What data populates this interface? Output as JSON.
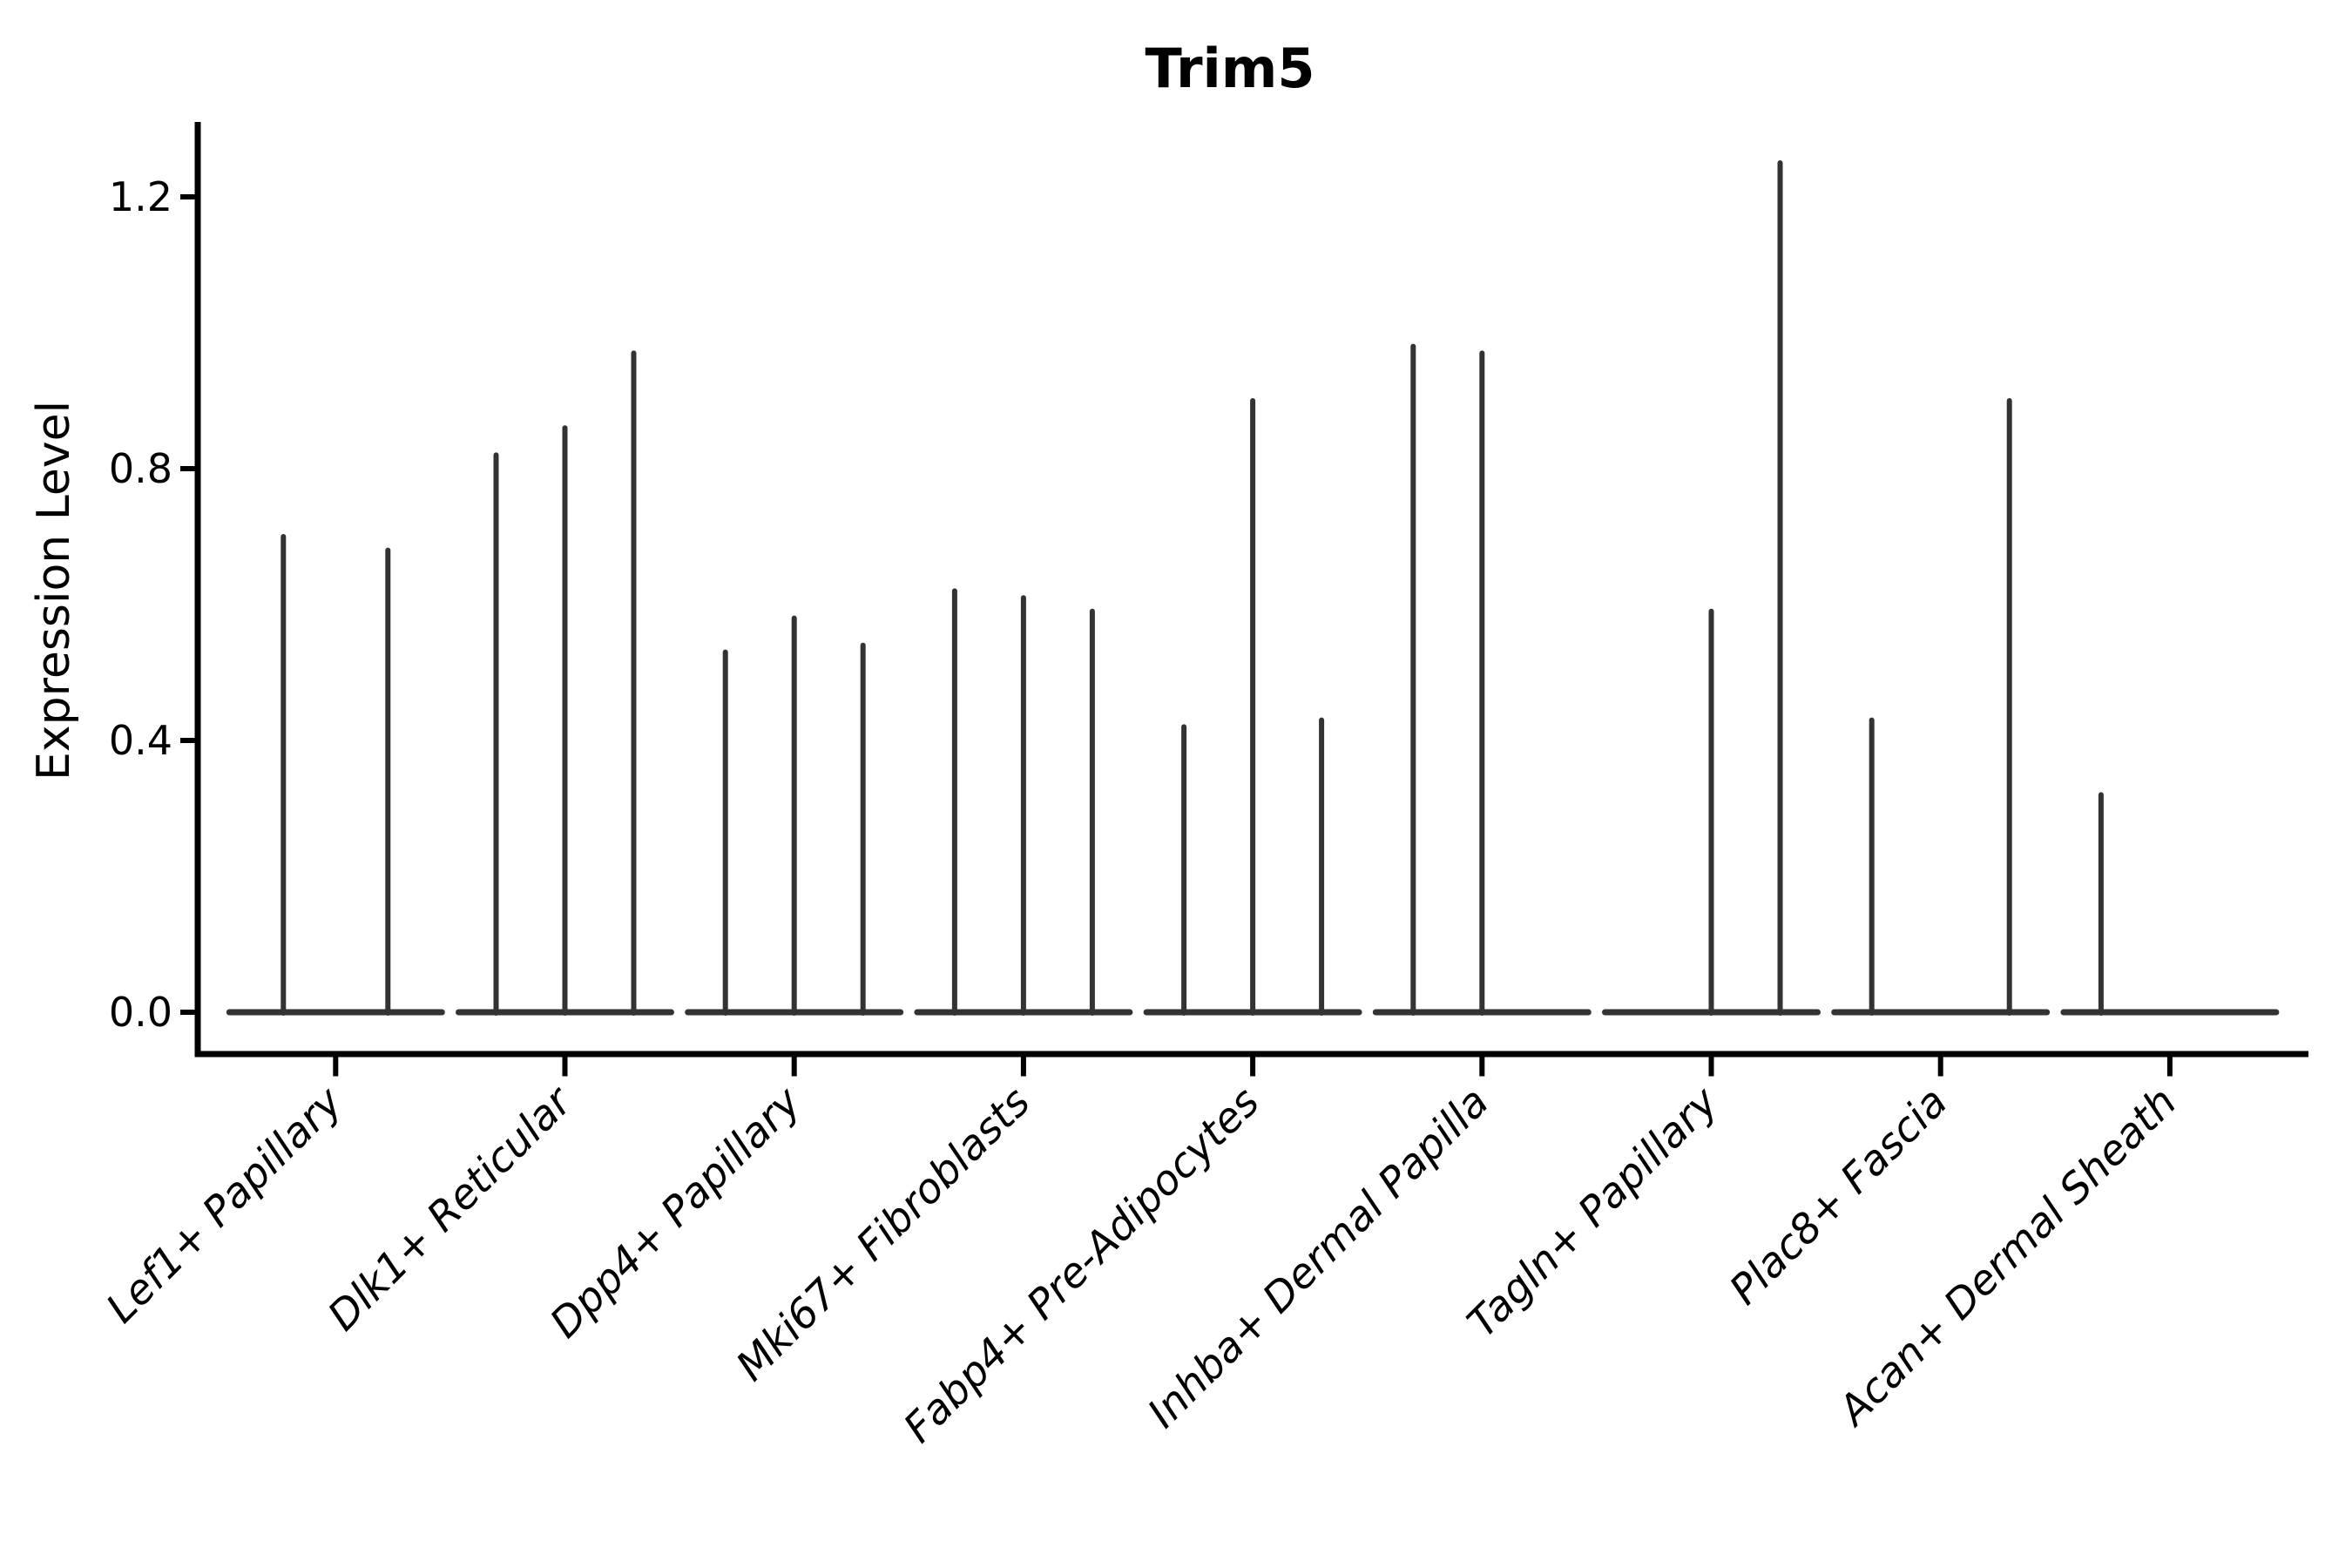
{
  "chart_data": {
    "type": "violin",
    "title": "Trim5",
    "ylabel": "Expression Level",
    "xlabel": "",
    "yticks": [
      0.0,
      0.4,
      0.8,
      1.2
    ],
    "ytick_labels": [
      "0.0",
      "0.4",
      "0.8",
      "1.2"
    ],
    "ylim": [
      -0.06,
      1.31
    ],
    "grid": false,
    "legend": "none",
    "colors": {
      "violin_line": "#333333",
      "axis": "#000000",
      "background": "#ffffff"
    },
    "categories": [
      "Lef1+ Papillary",
      "Dlk1+ Reticular",
      "Dpp4+ Papillary",
      "Mki67+ Fibroblasts",
      "Fabp4+ Pre-Adipocytes",
      "Inhba+ Dermal Papilla",
      "Tagln+ Papillary",
      "Plac8+ Fascia",
      "Acan+ Dermal Sheath"
    ],
    "groups": [
      {
        "label": "Lef1+ Papillary",
        "violins": [
          {
            "dx": -60,
            "max": 0.7
          },
          {
            "dx": 60,
            "max": 0.68
          }
        ]
      },
      {
        "label": "Dlk1+ Reticular",
        "violins": [
          {
            "dx": -79,
            "max": 0.82
          },
          {
            "dx": 0,
            "max": 0.86
          },
          {
            "dx": 79,
            "max": 0.97
          }
        ]
      },
      {
        "label": "Dpp4+ Papillary",
        "violins": [
          {
            "dx": -79,
            "max": 0.53
          },
          {
            "dx": 0,
            "max": 0.58
          },
          {
            "dx": 79,
            "max": 0.54
          }
        ]
      },
      {
        "label": "Mki67+ Fibroblasts",
        "violins": [
          {
            "dx": -79,
            "max": 0.62
          },
          {
            "dx": 0,
            "max": 0.61
          },
          {
            "dx": 79,
            "max": 0.59
          }
        ]
      },
      {
        "label": "Fabp4+ Pre-Adipocytes",
        "violins": [
          {
            "dx": -79,
            "max": 0.42
          },
          {
            "dx": 0,
            "max": 0.9
          },
          {
            "dx": 79,
            "max": 0.43
          }
        ]
      },
      {
        "label": "Inhba+ Dermal Papilla",
        "violins": [
          {
            "dx": -79,
            "max": 0.98
          },
          {
            "dx": 0,
            "max": 0.97
          }
        ]
      },
      {
        "label": "Tagln+ Papillary",
        "violins": [
          {
            "dx": 0,
            "max": 0.59
          },
          {
            "dx": 79,
            "max": 1.25
          }
        ]
      },
      {
        "label": "Plac8+ Fascia",
        "violins": [
          {
            "dx": -79,
            "max": 0.43
          },
          {
            "dx": 79,
            "max": 0.9
          }
        ]
      },
      {
        "label": "Acan+ Dermal Sheath",
        "violins": [
          {
            "dx": -79,
            "max": 0.32
          }
        ]
      }
    ]
  }
}
